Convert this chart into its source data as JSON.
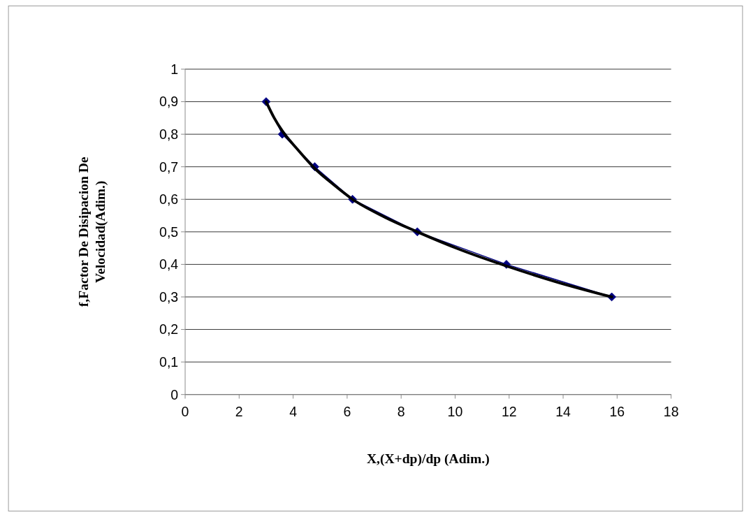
{
  "chart_data": {
    "type": "line",
    "xlabel": "X,(X+dp)/dp (Adim.)",
    "ylabel": "f,Factor De Disipacion De Velocidad(Adim.)",
    "xlim": [
      0,
      18
    ],
    "xticks": [
      0,
      2,
      4,
      6,
      8,
      10,
      12,
      14,
      16,
      18
    ],
    "ylim": [
      0,
      1
    ],
    "yticks": [
      0,
      {
        "value": 0.1,
        "label": "0,1"
      },
      {
        "value": 0.2,
        "label": "0,2"
      },
      {
        "value": 0.3,
        "label": "0,3"
      },
      {
        "value": 0.4,
        "label": "0,4"
      },
      {
        "value": 0.5,
        "label": "0,5"
      },
      {
        "value": 0.6,
        "label": "0,6"
      },
      {
        "value": 0.7,
        "label": "0,7"
      },
      {
        "value": 0.8,
        "label": "0,8"
      },
      {
        "value": 0.9,
        "label": "0,9"
      },
      1
    ],
    "grid": "y",
    "marker": "diamond",
    "x": [
      3.0,
      3.6,
      4.8,
      6.2,
      8.6,
      11.9,
      15.8
    ],
    "series": [
      {
        "color": "#000080",
        "values": [
          0.9,
          0.8,
          0.7,
          0.6,
          0.5,
          0.4,
          0.3
        ]
      },
      {
        "type": "line",
        "color": "#000000",
        "marker": "none",
        "x": [
          3.0,
          3.3,
          3.6,
          4.2,
          4.8,
          5.5,
          6.2,
          7.4,
          8.6,
          10.2,
          11.9,
          13.8,
          15.8
        ],
        "values": [
          0.9,
          0.85,
          0.81,
          0.75,
          0.695,
          0.645,
          0.6,
          0.545,
          0.5,
          0.445,
          0.395,
          0.345,
          0.3
        ]
      }
    ]
  }
}
